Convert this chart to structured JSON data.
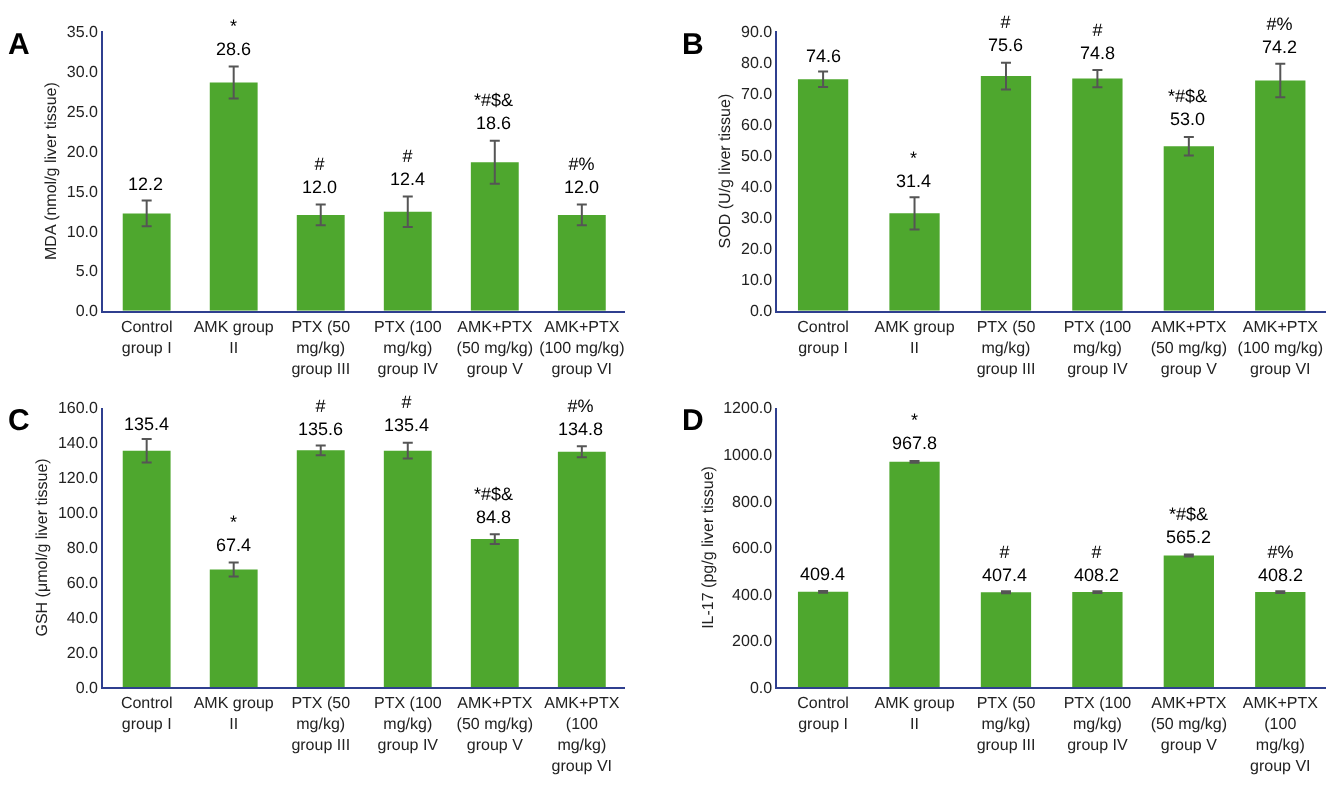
{
  "chart_data": [
    {
      "type": "bar",
      "title": "A",
      "ylabel": "MDA (nmol/g liver tissue)",
      "categories": [
        "Control\ngroup I",
        "AMK group\nII",
        "PTX (50\nmg/kg)\ngroup III",
        "PTX (100\nmg/kg)\ngroup IV",
        "AMK+PTX\n(50 mg/kg)\ngroup V",
        "AMK+PTX\n(100 mg/kg)\ngroup VI"
      ],
      "values": [
        12.2,
        28.6,
        12.0,
        12.4,
        18.6,
        12.0
      ],
      "errors": [
        1.6,
        2.0,
        1.3,
        1.9,
        2.7,
        1.3
      ],
      "color": "#4ea72e",
      "value_labels": [
        "12.2",
        "*\n28.6",
        "#\n12.0",
        "#\n12.4",
        "*#$&\n18.6",
        "#%\n12.0"
      ],
      "ylim": [
        0,
        35
      ],
      "yticks": [
        {
          "value": 0,
          "label": "0.0"
        },
        {
          "value": 5,
          "label": "5.0"
        },
        {
          "value": 10,
          "label": "10.0"
        },
        {
          "value": 15,
          "label": "15.0"
        },
        {
          "value": 20,
          "label": "20.0"
        },
        {
          "value": 25,
          "label": "25.0"
        },
        {
          "value": 30,
          "label": "30.0"
        },
        {
          "value": 35,
          "label": "35.0"
        }
      ]
    },
    {
      "type": "bar",
      "title": "B",
      "ylabel": "SOD (U/g liver tissue)",
      "categories": [
        "Control\ngroup I",
        "AMK group\nII",
        "PTX (50\nmg/kg)\ngroup III",
        "PTX (100\nmg/kg)\ngroup IV",
        "AMK+PTX\n(50 mg/kg)\ngroup V",
        "AMK+PTX\n(100 mg/kg)\ngroup VI"
      ],
      "values": [
        74.6,
        31.4,
        75.6,
        74.8,
        53.0,
        74.2
      ],
      "errors": [
        2.5,
        5.2,
        4.3,
        2.8,
        3.0,
        5.4
      ],
      "color": "#4ea72e",
      "value_labels": [
        "74.6",
        "*\n31.4",
        "#\n75.6",
        "#\n74.8",
        "*#$&\n53.0",
        "#%\n74.2"
      ],
      "ylim": [
        0,
        90
      ],
      "yticks": [
        {
          "value": 0,
          "label": "0.0"
        },
        {
          "value": 10,
          "label": "10.0"
        },
        {
          "value": 20,
          "label": "20.0"
        },
        {
          "value": 30,
          "label": "30.0"
        },
        {
          "value": 40,
          "label": "40.0"
        },
        {
          "value": 50,
          "label": "50.0"
        },
        {
          "value": 60,
          "label": "60.0"
        },
        {
          "value": 70,
          "label": "70.0"
        },
        {
          "value": 80,
          "label": "80.0"
        },
        {
          "value": 90,
          "label": "90.0"
        }
      ]
    },
    {
      "type": "bar",
      "title": "C",
      "ylabel": "GSH (μmol/g liver tissue)",
      "categories": [
        "Control\ngroup I",
        "AMK group\nII",
        "PTX (50\nmg/kg)\ngroup III",
        "PTX (100\nmg/kg)\ngroup IV",
        "AMK+PTX\n(50 mg/kg)\ngroup V",
        "AMK+PTX\n(100\nmg/kg)\ngroup VI"
      ],
      "values": [
        135.4,
        67.4,
        135.6,
        135.4,
        84.8,
        134.8
      ],
      "errors": [
        6.7,
        4.0,
        2.8,
        4.5,
        2.8,
        3.2
      ],
      "color": "#4ea72e",
      "value_labels": [
        "135.4",
        "*\n67.4",
        "#\n135.6",
        "#\n135.4",
        "*#$&\n84.8",
        "#%\n134.8"
      ],
      "ylim": [
        0,
        160
      ],
      "yticks": [
        {
          "value": 0,
          "label": "0.0"
        },
        {
          "value": 20,
          "label": "20.0"
        },
        {
          "value": 40,
          "label": "40.0"
        },
        {
          "value": 60,
          "label": "60.0"
        },
        {
          "value": 80,
          "label": "80.0"
        },
        {
          "value": 100,
          "label": "100.0"
        },
        {
          "value": 120,
          "label": "120.0"
        },
        {
          "value": 140,
          "label": "140.0"
        },
        {
          "value": 160,
          "label": "160.0"
        }
      ]
    },
    {
      "type": "bar",
      "title": "D",
      "ylabel": "IL-17 (pg/g liver tissue)",
      "categories": [
        "Control\ngroup I",
        "AMK group\nII",
        "PTX (50\nmg/kg)\ngroup III",
        "PTX (100\nmg/kg)\ngroup IV",
        "AMK+PTX\n(50 mg/kg)\ngroup V",
        "AMK+PTX\n(100\nmg/kg)\ngroup VI"
      ],
      "values": [
        409.4,
        967.8,
        407.4,
        408.2,
        565.2,
        408.2
      ],
      "errors": [
        4,
        4,
        4,
        4,
        4,
        4
      ],
      "color": "#4ea72e",
      "value_labels": [
        "409.4",
        "*\n967.8",
        "#\n407.4",
        "#\n408.2",
        "*#$&\n565.2",
        "#%\n408.2"
      ],
      "ylim": [
        0,
        1200
      ],
      "yticks": [
        {
          "value": 0,
          "label": "0.0"
        },
        {
          "value": 200,
          "label": "200.0"
        },
        {
          "value": 400,
          "label": "400.0"
        },
        {
          "value": 600,
          "label": "600.0"
        },
        {
          "value": 800,
          "label": "800.0"
        },
        {
          "value": 1000,
          "label": "1000.0"
        },
        {
          "value": 1200,
          "label": "1200.0"
        }
      ]
    }
  ]
}
